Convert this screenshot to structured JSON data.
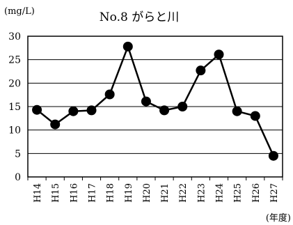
{
  "chart_data": {
    "type": "line",
    "title": "No.8 がらと川",
    "unit_label": "(mg/L)",
    "xlabel": "(年度)",
    "ylabel": "",
    "ylim": [
      0,
      30
    ],
    "yticks": [
      0,
      5,
      10,
      15,
      20,
      25,
      30
    ],
    "grid": true,
    "categories": [
      "H14",
      "H15",
      "H16",
      "H17",
      "H18",
      "H19",
      "H20",
      "H21",
      "H22",
      "H23",
      "H24",
      "H25",
      "H26",
      "H27"
    ],
    "series": [
      {
        "values": [
          14.3,
          11.2,
          14.0,
          14.2,
          17.6,
          27.8,
          16.1,
          14.2,
          15.0,
          22.7,
          26.1,
          14.0,
          13.0,
          4.5
        ],
        "color": "#000000"
      }
    ]
  }
}
